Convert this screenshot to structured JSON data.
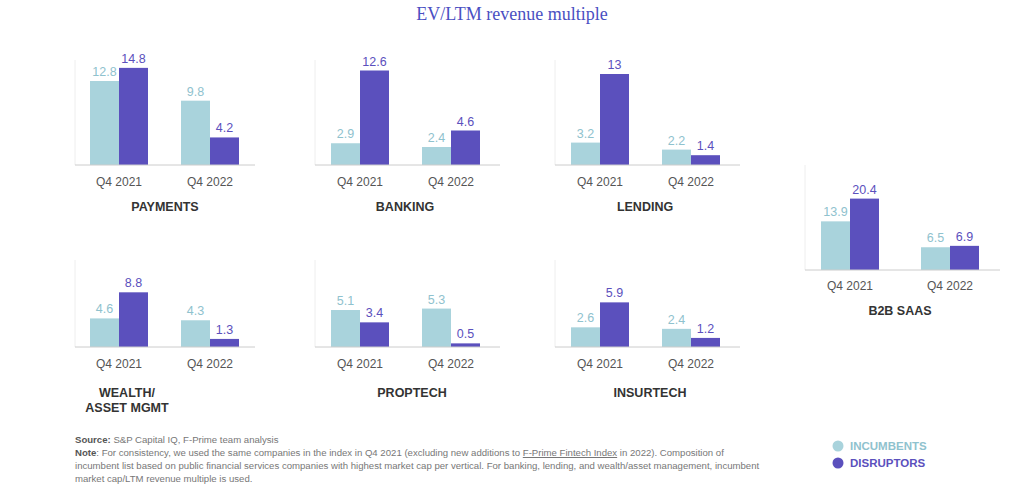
{
  "title": "EV/LTM revenue multiple",
  "source": {
    "label": "Source:",
    "text": "S&P Capital IQ, F-Prime team analysis"
  },
  "note": {
    "label": "Note",
    "text_before": ": For consistency, we used the same companies in the index in Q4 2021 (excluding new additions to ",
    "link": "F-Prime Fintech Index",
    "text_after": " in 2022). Composition of incumbent list based on public financial services companies with highest market cap per vertical. For banking, lending, and wealth/asset management, incumbent market cap/LTM revenue multiple is used."
  },
  "chart_data": [
    {
      "type": "bar",
      "title": "PAYMENTS",
      "categories": [
        "Q4 2021",
        "Q4 2022"
      ],
      "series": [
        {
          "name": "INCUMBENTS",
          "color": "#a9d3dc",
          "values": [
            12.8,
            9.8
          ]
        },
        {
          "name": "DISRUPTORS",
          "color": "#5b50bd",
          "values": [
            14.8,
            4.2
          ]
        }
      ],
      "ylim": [
        0,
        16
      ],
      "data_labels": true,
      "tick_labels": "x"
    },
    {
      "type": "bar",
      "title": "BANKING",
      "categories": [
        "Q4 2021",
        "Q4 2022"
      ],
      "series": [
        {
          "name": "INCUMBENTS",
          "color": "#a9d3dc",
          "values": [
            2.9,
            2.4
          ]
        },
        {
          "name": "DISRUPTORS",
          "color": "#5b50bd",
          "values": [
            12.6,
            4.6
          ]
        }
      ],
      "ylim": [
        0,
        14
      ],
      "data_labels": true,
      "tick_labels": "x"
    },
    {
      "type": "bar",
      "title": "LENDING",
      "categories": [
        "Q4 2021",
        "Q4 2022"
      ],
      "series": [
        {
          "name": "INCUMBENTS",
          "color": "#a9d3dc",
          "values": [
            3.2,
            2.2
          ]
        },
        {
          "name": "DISRUPTORS",
          "color": "#5b50bd",
          "values": [
            13.0,
            1.4
          ]
        }
      ],
      "ylim": [
        0,
        15
      ],
      "data_labels": true,
      "tick_labels": "x"
    },
    {
      "type": "bar",
      "title": "B2B SAAS",
      "categories": [
        "Q4 2021",
        "Q4 2022"
      ],
      "series": [
        {
          "name": "INCUMBENTS",
          "color": "#a9d3dc",
          "values": [
            13.9,
            6.5
          ]
        },
        {
          "name": "DISRUPTORS",
          "color": "#5b50bd",
          "values": [
            20.4,
            6.9
          ]
        }
      ],
      "ylim": [
        0,
        30
      ],
      "data_labels": true,
      "tick_labels": "x"
    },
    {
      "type": "bar",
      "title": "WEALTH/\nASSET MGMT",
      "categories": [
        "Q4 2021",
        "Q4 2022"
      ],
      "series": [
        {
          "name": "INCUMBENTS",
          "color": "#a9d3dc",
          "values": [
            4.6,
            4.3
          ]
        },
        {
          "name": "DISRUPTORS",
          "color": "#5b50bd",
          "values": [
            8.8,
            1.3
          ]
        }
      ],
      "ylim": [
        0,
        14
      ],
      "data_labels": true,
      "tick_labels": "x"
    },
    {
      "type": "bar",
      "title": "PROPTECH",
      "categories": [
        "Q4 2021",
        "Q4 2022"
      ],
      "series": [
        {
          "name": "INCUMBENTS",
          "color": "#a9d3dc",
          "values": [
            5.1,
            5.3
          ]
        },
        {
          "name": "DISRUPTORS",
          "color": "#5b50bd",
          "values": [
            3.4,
            0.5
          ]
        }
      ],
      "ylim": [
        0,
        12
      ],
      "data_labels": true,
      "tick_labels": "x"
    },
    {
      "type": "bar",
      "title": "INSURTECH",
      "categories": [
        "Q4 2021",
        "Q4 2022"
      ],
      "series": [
        {
          "name": "INCUMBENTS",
          "color": "#a9d3dc",
          "values": [
            2.6,
            2.4
          ]
        },
        {
          "name": "DISRUPTORS",
          "color": "#5b50bd",
          "values": [
            5.9,
            1.2
          ]
        }
      ],
      "ylim": [
        0,
        11.5
      ],
      "data_labels": true,
      "tick_labels": "x"
    }
  ]
}
